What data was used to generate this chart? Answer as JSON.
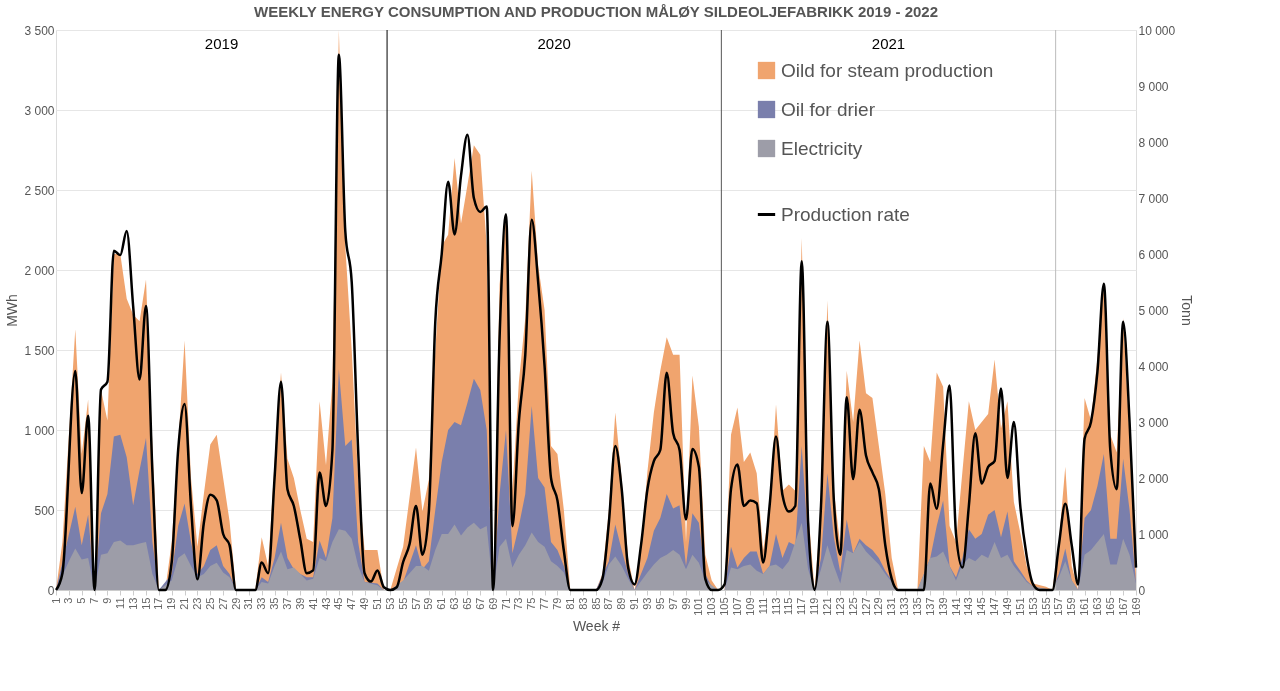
{
  "chart_data": {
    "type": "area",
    "title": "WEEKLY ENERGY CONSUMPTION AND PRODUCTION MÅLØY SILDEOLJEFABRIKK   2019 - 2022",
    "xlabel": "Week #",
    "ylabel": "MWh",
    "y2label": "Tonn",
    "xlim": [
      1,
      169
    ],
    "xticks": [
      1,
      3,
      5,
      7,
      9,
      11,
      13,
      15,
      17,
      19,
      21,
      23,
      25,
      27,
      29,
      31,
      33,
      35,
      37,
      39,
      41,
      43,
      45,
      47,
      49,
      51,
      53,
      55,
      57,
      59,
      61,
      63,
      65,
      67,
      69,
      71,
      73,
      75,
      77,
      79,
      81,
      83,
      85,
      87,
      89,
      91,
      93,
      95,
      97,
      99,
      101,
      103,
      105,
      107,
      109,
      111,
      113,
      115,
      117,
      119,
      121,
      123,
      125,
      127,
      129,
      131,
      133,
      135,
      137,
      139,
      141,
      143,
      145,
      147,
      149,
      151,
      153,
      155,
      157,
      159,
      161,
      163,
      165,
      167,
      169
    ],
    "ylim": [
      0,
      3500
    ],
    "yticks": [
      0,
      500,
      {
        "value": 1000,
        "label": "1 000"
      },
      {
        "value": 1500,
        "label": "1 500"
      },
      {
        "value": 2000,
        "label": "2 000"
      },
      {
        "value": 2500,
        "label": "2 500"
      },
      {
        "value": 3000,
        "label": "3 000"
      },
      {
        "value": 3500,
        "label": "3 500"
      }
    ],
    "y2lim": [
      0,
      10000
    ],
    "y2ticks": [
      0,
      {
        "value": 1000,
        "label": "1 000"
      },
      {
        "value": 2000,
        "label": "2 000"
      },
      {
        "value": 3000,
        "label": "3 000"
      },
      {
        "value": 4000,
        "label": "4 000"
      },
      {
        "value": 5000,
        "label": "5 000"
      },
      {
        "value": 6000,
        "label": "6 000"
      },
      {
        "value": 7000,
        "label": "7 000"
      },
      {
        "value": 8000,
        "label": "8 000"
      },
      {
        "value": 9000,
        "label": "9 000"
      },
      {
        "value": 10000,
        "label": "10 000"
      }
    ],
    "grid": "y",
    "legend": "top right",
    "annotations": [
      "2019",
      "2020",
      "2021"
    ],
    "ref_lines": [
      {
        "axis": "x",
        "value": 52.5,
        "color": "#000000"
      },
      {
        "axis": "x",
        "value": 104.5,
        "color": "#555555"
      },
      {
        "axis": "x",
        "value": 156.5,
        "color": "#bbbbbb"
      }
    ],
    "series": [
      {
        "name": "Oild for steam production",
        "color": "#f0a46e",
        "x": [
          1,
          2,
          4,
          5,
          6,
          7,
          8,
          9,
          10,
          11,
          12,
          13,
          14,
          15,
          16,
          17,
          18,
          19,
          20,
          21,
          22,
          23,
          24,
          25,
          26,
          27,
          28,
          29,
          32,
          33,
          34,
          35,
          36,
          37,
          38,
          39,
          40,
          41,
          42,
          43,
          44,
          45,
          46,
          47,
          48,
          49,
          51,
          52,
          53,
          55,
          57,
          58,
          59,
          60,
          61,
          62,
          63,
          64,
          65,
          66,
          67,
          68,
          69,
          70,
          71,
          72,
          73,
          74,
          75,
          76,
          77,
          78,
          79,
          80,
          81,
          85,
          86,
          87,
          88,
          89,
          90,
          91,
          92,
          93,
          94,
          95,
          96,
          97,
          98,
          99,
          100,
          101,
          102,
          103,
          104,
          105,
          106,
          107,
          108,
          109,
          110,
          111,
          112,
          113,
          114,
          115,
          116,
          117,
          118,
          119,
          120,
          121,
          122,
          123,
          124,
          125,
          126,
          127,
          128,
          129,
          130,
          131,
          132,
          135,
          136,
          137,
          138,
          139,
          140,
          141,
          142,
          143,
          144,
          145,
          146,
          147,
          148,
          149,
          150,
          151,
          152,
          153,
          155,
          156,
          157,
          158,
          159,
          160,
          161,
          162,
          163,
          164,
          165,
          166,
          167,
          168,
          169
        ],
        "values": [
          0,
          300,
          1630,
          850,
          1190,
          0,
          1250,
          1060,
          2100,
          2100,
          1820,
          1720,
          1680,
          1940,
          900,
          0,
          0,
          300,
          900,
          1560,
          700,
          270,
          600,
          910,
          970,
          700,
          430,
          0,
          0,
          330,
          150,
          800,
          1360,
          820,
          700,
          500,
          320,
          300,
          1180,
          780,
          1300,
          3500,
          2150,
          1500,
          700,
          250,
          250,
          0,
          0,
          270,
          890,
          490,
          690,
          1490,
          2150,
          2220,
          2700,
          2290,
          2530,
          2780,
          2720,
          2150,
          0,
          1910,
          2340,
          620,
          1300,
          1700,
          2620,
          2030,
          1750,
          900,
          850,
          500,
          0,
          0,
          100,
          500,
          1110,
          690,
          200,
          0,
          270,
          740,
          1110,
          1370,
          1580,
          1470,
          1470,
          300,
          1340,
          1020,
          220,
          60,
          0,
          0,
          970,
          1140,
          800,
          860,
          730,
          250,
          500,
          1160,
          620,
          660,
          620,
          2200,
          500,
          0,
          500,
          1810,
          620,
          280,
          1370,
          1050,
          1560,
          1230,
          1200,
          900,
          600,
          200,
          0,
          0,
          900,
          800,
          1360,
          1270,
          400,
          300,
          740,
          1180,
          1000,
          1050,
          1100,
          1440,
          1010,
          1180,
          550,
          360,
          150,
          40,
          20,
          0,
          300,
          770,
          150,
          0,
          1200,
          1060,
          1450,
          1910,
          970,
          860,
          1700,
          970,
          100
        ]
      },
      {
        "name": "Oil for drier",
        "color": "#7a7fac",
        "x": [
          1,
          4,
          5,
          6,
          7,
          8,
          9,
          10,
          11,
          12,
          13,
          14,
          15,
          16,
          17,
          19,
          20,
          21,
          22,
          23,
          24,
          25,
          26,
          27,
          28,
          29,
          32,
          33,
          34,
          35,
          36,
          37,
          38,
          39,
          40,
          41,
          42,
          43,
          44,
          45,
          46,
          47,
          48,
          49,
          51,
          52,
          53,
          55,
          57,
          58,
          59,
          60,
          61,
          62,
          63,
          64,
          65,
          66,
          67,
          68,
          69,
          70,
          71,
          72,
          73,
          74,
          75,
          76,
          77,
          78,
          79,
          80,
          81,
          85,
          87,
          88,
          89,
          90,
          91,
          93,
          94,
          95,
          96,
          97,
          98,
          99,
          100,
          101,
          102,
          103,
          104,
          105,
          106,
          107,
          108,
          109,
          110,
          111,
          112,
          113,
          114,
          115,
          116,
          117,
          118,
          119,
          120,
          121,
          122,
          123,
          124,
          125,
          126,
          127,
          128,
          129,
          130,
          131,
          132,
          135,
          136,
          137,
          138,
          139,
          140,
          141,
          142,
          143,
          144,
          145,
          146,
          147,
          148,
          149,
          150,
          151,
          152,
          153,
          156,
          157,
          158,
          159,
          160,
          161,
          162,
          163,
          164,
          165,
          166,
          167,
          168,
          169
        ],
        "values": [
          0,
          520,
          280,
          470,
          0,
          480,
          600,
          960,
          970,
          830,
          530,
          750,
          950,
          300,
          0,
          100,
          400,
          540,
          300,
          100,
          150,
          250,
          280,
          150,
          100,
          0,
          0,
          80,
          50,
          200,
          420,
          200,
          130,
          100,
          80,
          80,
          310,
          200,
          450,
          1380,
          900,
          940,
          300,
          50,
          40,
          0,
          0,
          50,
          280,
          130,
          180,
          500,
          800,
          1000,
          1050,
          1030,
          1170,
          1320,
          1250,
          1000,
          0,
          600,
          1000,
          230,
          400,
          600,
          1150,
          700,
          640,
          300,
          250,
          150,
          0,
          0,
          180,
          410,
          250,
          100,
          0,
          200,
          370,
          450,
          600,
          510,
          530,
          150,
          480,
          420,
          100,
          20,
          0,
          0,
          270,
          140,
          200,
          240,
          240,
          100,
          150,
          350,
          200,
          300,
          280,
          900,
          300,
          0,
          200,
          730,
          330,
          110,
          440,
          230,
          320,
          280,
          250,
          200,
          120,
          60,
          0,
          0,
          100,
          200,
          400,
          560,
          150,
          80,
          200,
          380,
          320,
          350,
          470,
          500,
          330,
          490,
          180,
          120,
          60,
          20,
          0,
          100,
          260,
          60,
          0,
          450,
          500,
          650,
          850,
          320,
          320,
          820,
          500,
          50
        ]
      },
      {
        "name": "Electricity",
        "color": "#9d9da8",
        "x": [
          1,
          3,
          4,
          5,
          6,
          7,
          8,
          9,
          10,
          11,
          12,
          13,
          14,
          15,
          16,
          17,
          19,
          20,
          21,
          22,
          23,
          24,
          25,
          26,
          27,
          28,
          29,
          32,
          33,
          34,
          35,
          36,
          37,
          38,
          39,
          40,
          41,
          42,
          43,
          44,
          45,
          46,
          47,
          48,
          49,
          51,
          52,
          53,
          55,
          57,
          58,
          59,
          60,
          61,
          62,
          63,
          64,
          65,
          66,
          67,
          68,
          69,
          70,
          71,
          72,
          73,
          74,
          75,
          76,
          77,
          78,
          79,
          80,
          81,
          85,
          86,
          87,
          88,
          89,
          90,
          91,
          93,
          94,
          95,
          96,
          97,
          98,
          99,
          100,
          101,
          102,
          103,
          104,
          105,
          106,
          107,
          108,
          109,
          110,
          111,
          112,
          113,
          114,
          115,
          116,
          117,
          118,
          119,
          120,
          121,
          122,
          123,
          124,
          125,
          126,
          127,
          128,
          129,
          130,
          131,
          132,
          135,
          136,
          137,
          138,
          139,
          140,
          141,
          142,
          143,
          144,
          145,
          146,
          147,
          148,
          149,
          150,
          151,
          152,
          153,
          156,
          157,
          158,
          159,
          160,
          161,
          162,
          163,
          164,
          165,
          166,
          167,
          168,
          169
        ],
        "values": [
          0,
          180,
          260,
          190,
          200,
          0,
          220,
          230,
          300,
          310,
          280,
          280,
          290,
          300,
          100,
          0,
          60,
          200,
          230,
          150,
          80,
          100,
          150,
          170,
          110,
          80,
          0,
          0,
          50,
          40,
          150,
          240,
          130,
          140,
          100,
          60,
          70,
          200,
          180,
          300,
          380,
          370,
          320,
          150,
          50,
          30,
          0,
          0,
          60,
          150,
          150,
          120,
          250,
          350,
          350,
          410,
          340,
          390,
          420,
          380,
          400,
          0,
          270,
          320,
          140,
          220,
          280,
          360,
          300,
          270,
          180,
          150,
          110,
          0,
          0,
          40,
          160,
          210,
          150,
          70,
          0,
          110,
          160,
          200,
          220,
          250,
          220,
          130,
          220,
          170,
          60,
          30,
          0,
          0,
          140,
          130,
          150,
          160,
          120,
          100,
          150,
          160,
          130,
          180,
          300,
          420,
          130,
          0,
          130,
          280,
          150,
          40,
          250,
          230,
          300,
          240,
          200,
          160,
          100,
          50,
          0,
          0,
          100,
          200,
          210,
          240,
          150,
          60,
          160,
          200,
          180,
          220,
          200,
          300,
          200,
          220,
          150,
          100,
          50,
          20,
          0,
          80,
          180,
          60,
          0,
          220,
          250,
          300,
          350,
          160,
          160,
          320,
          220,
          40
        ]
      },
      {
        "name": "Production rate",
        "type": "line",
        "axis": "y2",
        "color": "#000000",
        "x": [
          1,
          2,
          4,
          5,
          6,
          7,
          8,
          9,
          10,
          11,
          12,
          13,
          14,
          15,
          16,
          17,
          18,
          19,
          20,
          21,
          22,
          23,
          24,
          25,
          26,
          27,
          28,
          29,
          32,
          33,
          34,
          35,
          36,
          37,
          38,
          39,
          40,
          41,
          42,
          43,
          44,
          45,
          46,
          47,
          48,
          49,
          50,
          51,
          52,
          53,
          54,
          55,
          56,
          57,
          58,
          59,
          60,
          61,
          62,
          63,
          64,
          65,
          66,
          67,
          68,
          69,
          70,
          71,
          72,
          73,
          74,
          75,
          76,
          77,
          78,
          79,
          80,
          81,
          85,
          86,
          87,
          88,
          89,
          90,
          91,
          92,
          93,
          94,
          95,
          96,
          97,
          98,
          99,
          100,
          101,
          102,
          103,
          104,
          105,
          106,
          107,
          108,
          109,
          110,
          111,
          112,
          113,
          114,
          115,
          116,
          117,
          118,
          119,
          120,
          121,
          122,
          123,
          124,
          125,
          126,
          127,
          128,
          129,
          130,
          131,
          132,
          136,
          137,
          138,
          139,
          140,
          141,
          142,
          143,
          144,
          145,
          146,
          147,
          148,
          149,
          150,
          151,
          152,
          153,
          154,
          156,
          157,
          158,
          159,
          160,
          161,
          162,
          163,
          164,
          165,
          166,
          167,
          168,
          169
        ],
        "values": [
          0,
          300,
          3910,
          1730,
          3110,
          0,
          3580,
          3720,
          6060,
          5980,
          6410,
          5070,
          3760,
          5070,
          2100,
          0,
          0,
          500,
          2500,
          3320,
          1500,
          190,
          1200,
          1700,
          1600,
          1000,
          800,
          0,
          0,
          490,
          300,
          2000,
          3720,
          1800,
          1500,
          900,
          300,
          350,
          2100,
          1500,
          2500,
          9560,
          6410,
          5500,
          2500,
          300,
          150,
          350,
          50,
          0,
          50,
          500,
          820,
          1500,
          630,
          1400,
          4790,
          6000,
          7290,
          6350,
          7400,
          8130,
          7000,
          6750,
          6850,
          0,
          4500,
          6710,
          1140,
          3000,
          4200,
          6610,
          5500,
          4000,
          2000,
          1600,
          700,
          0,
          0,
          200,
          1200,
          2570,
          1800,
          400,
          100,
          800,
          1800,
          2300,
          2500,
          3880,
          2800,
          2500,
          1260,
          2520,
          2200,
          200,
          0,
          0,
          100,
          1800,
          2240,
          1500,
          1600,
          1550,
          490,
          1500,
          2740,
          1700,
          1400,
          1500,
          5870,
          1200,
          0,
          1500,
          4790,
          1600,
          630,
          3440,
          1980,
          3220,
          2400,
          2100,
          1800,
          800,
          200,
          0,
          0,
          1900,
          1450,
          2600,
          3650,
          1000,
          400,
          1500,
          2800,
          1900,
          2200,
          2300,
          3600,
          2000,
          3000,
          1500,
          600,
          100,
          0,
          0,
          800,
          1540,
          800,
          100,
          2700,
          3000,
          3900,
          5470,
          2500,
          1800,
          4790,
          3000,
          400
        ]
      }
    ]
  }
}
